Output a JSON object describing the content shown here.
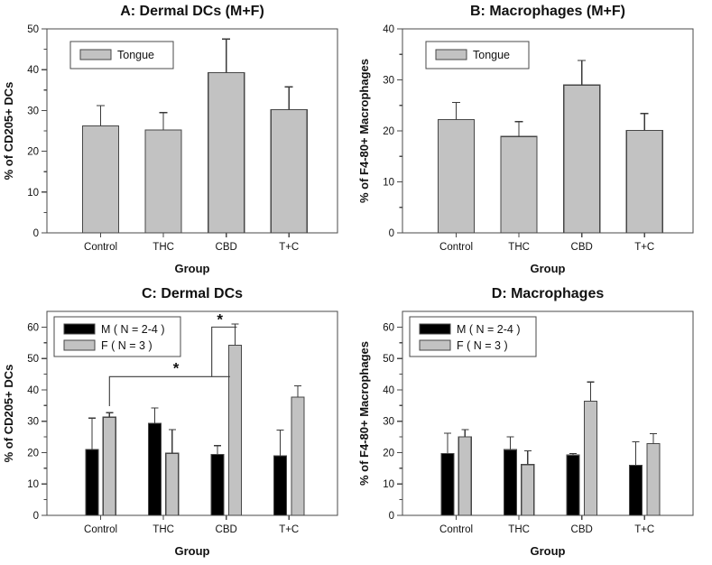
{
  "figure": {
    "background": "#ffffff",
    "description": "2x2 grid of bar charts with error bars"
  },
  "colors": {
    "bar_gray": "#c2c2c2",
    "bar_black": "#000000",
    "bar_border": "#474747",
    "axis": "#4a4a4a",
    "error": "#3a3a3a",
    "text": "#111111",
    "title": "#000000"
  },
  "chart_data": [
    {
      "id": "panel-a",
      "type": "bar",
      "title": "A: Dermal DCs (M+F)",
      "xlabel": "Group",
      "ylabel": "% of CD205+ DCs",
      "categories": [
        "Control",
        "THC",
        "CBD",
        "T+C"
      ],
      "ylim": [
        0,
        50
      ],
      "ytick_step": 10,
      "ytick_max": 50,
      "grid": false,
      "legend_position": "upper-left-inside",
      "legend": [
        {
          "label": "Tongue",
          "color": "gray"
        }
      ],
      "series": [
        {
          "name": "Tongue",
          "color": "gray",
          "values": [
            26.2,
            25.2,
            39.3,
            30.2
          ],
          "errors": [
            5.0,
            4.3,
            8.2,
            5.6
          ]
        }
      ]
    },
    {
      "id": "panel-b",
      "type": "bar",
      "title": "B: Macrophages (M+F)",
      "xlabel": "Group",
      "ylabel": "% of F4-80+ Macrophages",
      "categories": [
        "Control",
        "THC",
        "CBD",
        "T+C"
      ],
      "ylim": [
        0,
        40
      ],
      "ytick_step": 10,
      "ytick_max": 40,
      "grid": false,
      "legend_position": "upper-left-inside",
      "legend": [
        {
          "label": "Tongue",
          "color": "gray"
        }
      ],
      "series": [
        {
          "name": "Tongue",
          "color": "gray",
          "values": [
            22.2,
            18.9,
            29.0,
            20.1
          ],
          "errors": [
            3.4,
            2.9,
            4.8,
            3.3
          ]
        }
      ]
    },
    {
      "id": "panel-c",
      "type": "bar",
      "title": "C: Dermal DCs",
      "xlabel": "Group",
      "ylabel": "% of CD205+ DCs",
      "categories": [
        "Control",
        "THC",
        "CBD",
        "T+C"
      ],
      "ylim": [
        0,
        65
      ],
      "ytick_step": 10,
      "ytick_max": 60,
      "grid": false,
      "legend_position": "upper-left-inside",
      "legend": [
        {
          "label": "M ( N = 2-4 )",
          "color": "black"
        },
        {
          "label": "F ( N = 3 )",
          "color": "gray"
        }
      ],
      "series": [
        {
          "name": "M",
          "color": "black",
          "values": [
            21.0,
            29.3,
            19.4,
            19.0
          ],
          "errors": [
            10.0,
            4.9,
            2.8,
            8.2
          ]
        },
        {
          "name": "F",
          "color": "gray",
          "values": [
            31.3,
            19.8,
            54.2,
            37.7
          ],
          "errors": [
            1.4,
            7.5,
            6.8,
            3.6
          ]
        }
      ],
      "annotations": {
        "brackets": [
          {
            "points": [
              [
                0.14,
                34.8
              ],
              [
                0.14,
                44.2
              ],
              [
                2.06,
                44.2
              ]
            ],
            "star": {
              "x": 1.2,
              "y": 45.3,
              "symbol": "*"
            }
          },
          {
            "points": [
              [
                1.77,
                44.2
              ],
              [
                1.77,
                60.0
              ],
              [
                2.17,
                60.0
              ]
            ],
            "star": {
              "x": 1.9,
              "y": 60.9,
              "symbol": "*"
            }
          }
        ]
      }
    },
    {
      "id": "panel-d",
      "type": "bar",
      "title": "D: Macrophages",
      "xlabel": "Group",
      "ylabel": "% of F4-80+ Macrophages",
      "categories": [
        "Control",
        "THC",
        "CBD",
        "T+C"
      ],
      "ylim": [
        0,
        65
      ],
      "ytick_step": 10,
      "ytick_max": 60,
      "grid": false,
      "legend_position": "upper-left-inside",
      "legend": [
        {
          "label": "M ( N = 2-4 )",
          "color": "black"
        },
        {
          "label": "F ( N = 3 )",
          "color": "gray"
        }
      ],
      "series": [
        {
          "name": "M",
          "color": "black",
          "values": [
            19.7,
            20.9,
            19.2,
            16.0
          ],
          "errors": [
            6.5,
            4.1,
            0.5,
            7.4
          ]
        },
        {
          "name": "F",
          "color": "gray",
          "values": [
            25.0,
            16.2,
            36.4,
            22.9
          ],
          "errors": [
            2.3,
            4.4,
            6.1,
            3.1
          ]
        }
      ]
    }
  ]
}
